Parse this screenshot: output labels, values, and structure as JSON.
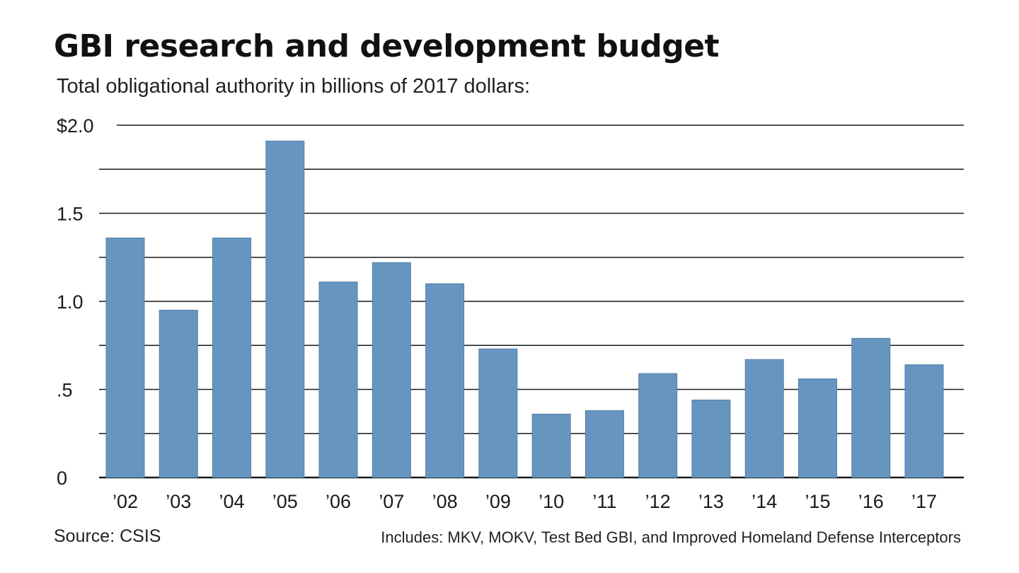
{
  "chart_data": {
    "type": "bar",
    "title": "GBI research and development budget",
    "subtitle": "Total obligational authority in billions of 2017 dollars:",
    "categories": [
      "’02",
      "’03",
      "’04",
      "’05",
      "’06",
      "’07",
      "’08",
      "’09",
      "’10",
      "’11",
      "’12",
      "’13",
      "’14",
      "’15",
      "’16",
      "’17"
    ],
    "values": [
      1.36,
      0.95,
      1.36,
      1.91,
      1.11,
      1.22,
      1.1,
      0.73,
      0.36,
      0.38,
      0.59,
      0.44,
      0.67,
      0.56,
      0.79,
      0.64
    ],
    "ylim": [
      0,
      2.0
    ],
    "yticks": [
      {
        "value": 0,
        "label": "0"
      },
      {
        "value": 0.5,
        "label": ".5"
      },
      {
        "value": 1.0,
        "label": "1.0"
      },
      {
        "value": 1.5,
        "label": "1.5"
      },
      {
        "value": 2.0,
        "label": "$2.0"
      }
    ],
    "minor_gridlines": [
      0.25,
      0.75,
      1.25,
      1.75
    ],
    "grid": true,
    "legend": "none",
    "bar_color": "#6696c0",
    "grid_color": "#1a1a1a",
    "source": "Source: CSIS",
    "note": "Includes: MKV, MOKV, Test Bed GBI, and Improved Homeland Defense Interceptors"
  }
}
